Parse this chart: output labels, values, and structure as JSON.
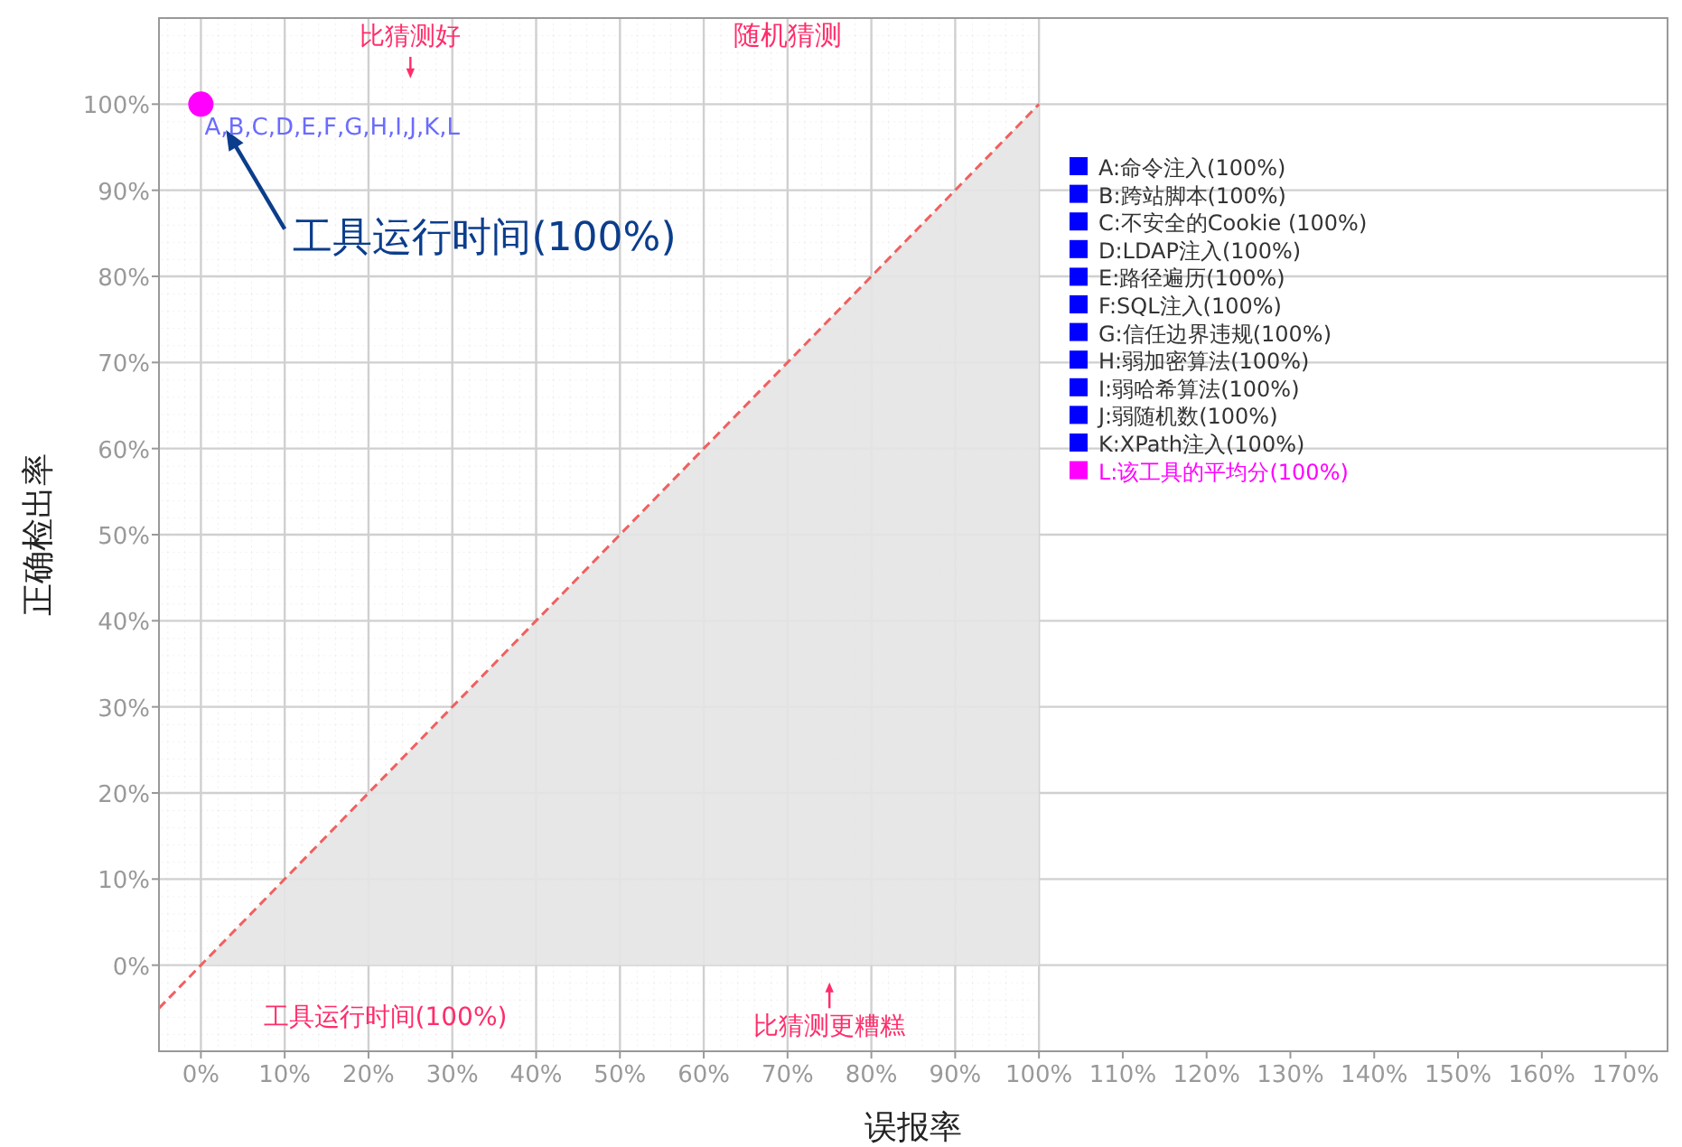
{
  "chart_data": {
    "type": "scatter",
    "xlabel": "误报率",
    "ylabel": "正确检出率",
    "xlim": [
      -5,
      175
    ],
    "ylim": [
      -10,
      110
    ],
    "xticks": [
      {
        "value": 0,
        "label": "0%"
      },
      {
        "value": 10,
        "label": "10%"
      },
      {
        "value": 20,
        "label": "20%"
      },
      {
        "value": 30,
        "label": "30%"
      },
      {
        "value": 40,
        "label": "40%"
      },
      {
        "value": 50,
        "label": "50%"
      },
      {
        "value": 60,
        "label": "60%"
      },
      {
        "value": 70,
        "label": "70%"
      },
      {
        "value": 80,
        "label": "80%"
      },
      {
        "value": 90,
        "label": "90%"
      },
      {
        "value": 100,
        "label": "100%"
      },
      {
        "value": 110,
        "label": "110%"
      },
      {
        "value": 120,
        "label": "120%"
      },
      {
        "value": 130,
        "label": "130%"
      },
      {
        "value": 140,
        "label": "140%"
      },
      {
        "value": 150,
        "label": "150%"
      },
      {
        "value": 160,
        "label": "160%"
      },
      {
        "value": 170,
        "label": "170%"
      }
    ],
    "yticks": [
      {
        "value": 0,
        "label": "0%"
      },
      {
        "value": 10,
        "label": "10%"
      },
      {
        "value": 20,
        "label": "20%"
      },
      {
        "value": 30,
        "label": "30%"
      },
      {
        "value": 40,
        "label": "40%"
      },
      {
        "value": 50,
        "label": "50%"
      },
      {
        "value": 60,
        "label": "60%"
      },
      {
        "value": 70,
        "label": "70%"
      },
      {
        "value": 80,
        "label": "80%"
      },
      {
        "value": 90,
        "label": "90%"
      },
      {
        "value": 100,
        "label": "100%"
      }
    ],
    "grid": true,
    "legend": "right",
    "series": [
      {
        "type": "area",
        "color": "#e4e4e4",
        "x": [
          0,
          100
        ],
        "values": [
          0,
          100
        ]
      },
      {
        "type": "line",
        "color": "#f06060",
        "line_style": "dashed",
        "x": [
          -5,
          100
        ],
        "values": [
          -5,
          100
        ]
      },
      {
        "name": "A:命令注入(100%)",
        "color": "#0000ff"
      },
      {
        "name": "B:跨站脚本(100%)",
        "color": "#0000ff"
      },
      {
        "name": "C:不安全的Cookie (100%)",
        "color": "#0000ff"
      },
      {
        "name": "D:LDAP注入(100%)",
        "color": "#0000ff"
      },
      {
        "name": "E:路径遍历(100%)",
        "color": "#0000ff"
      },
      {
        "name": "F:SQL注入(100%)",
        "color": "#0000ff"
      },
      {
        "name": "G:信任边界违规(100%)",
        "color": "#0000ff"
      },
      {
        "name": "H:弱加密算法(100%)",
        "color": "#0000ff"
      },
      {
        "name": "I:弱哈希算法(100%)",
        "color": "#0000ff"
      },
      {
        "name": "J:弱随机数(100%)",
        "color": "#0000ff"
      },
      {
        "name": "K:XPath注入(100%)",
        "color": "#0000ff"
      },
      {
        "name": "L:该工具的平均分(100%)",
        "color": "#ff00ff",
        "marker": "circle",
        "x": [
          0
        ],
        "values": [
          100
        ]
      }
    ],
    "annotations": [
      "比猜测好",
      "随机猜测",
      "工具运行时间(100%)",
      {
        "text": "A,B,C,D,E,F,G,H,I,J,K,L",
        "x": 0,
        "y": 100
      },
      "工具运行时间(100%)",
      "比猜测更糟糕"
    ]
  }
}
